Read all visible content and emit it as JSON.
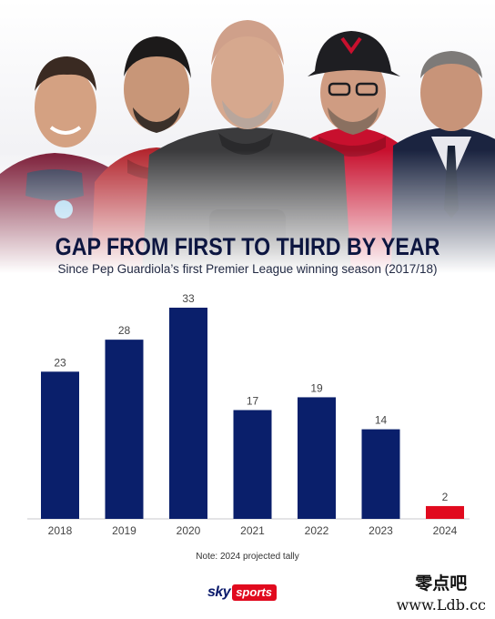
{
  "header": {
    "title": "GAP FROM FIRST TO THIRD BY YEAR",
    "subtitle": "Since Pep Guardiola’s first Premier League winning season (2017/18)"
  },
  "chart_data": {
    "type": "bar",
    "title": "GAP FROM FIRST TO THIRD BY YEAR",
    "subtitle": "Since Pep Guardiola’s first Premier League winning season (2017/18)",
    "categories": [
      "2018",
      "2019",
      "2020",
      "2021",
      "2022",
      "2023",
      "2024"
    ],
    "values": [
      23,
      28,
      33,
      17,
      19,
      14,
      2
    ],
    "colors": [
      "#0a1f6b",
      "#0a1f6b",
      "#0a1f6b",
      "#0a1f6b",
      "#0a1f6b",
      "#0a1f6b",
      "#e10a1e"
    ],
    "xlabel": "",
    "ylabel": "",
    "ylim": [
      0,
      33
    ],
    "grid": false,
    "legend": "none"
  },
  "footer": {
    "note": "Note: 2024 projected tally",
    "brand_sky": "sky",
    "brand_sports": "sports",
    "watermark_top": "零点吧",
    "watermark_bottom": "www.Ldb.cc"
  },
  "colors": {
    "bar": "#0a1f6b",
    "highlight": "#e10a1e",
    "title": "#0d1640"
  }
}
